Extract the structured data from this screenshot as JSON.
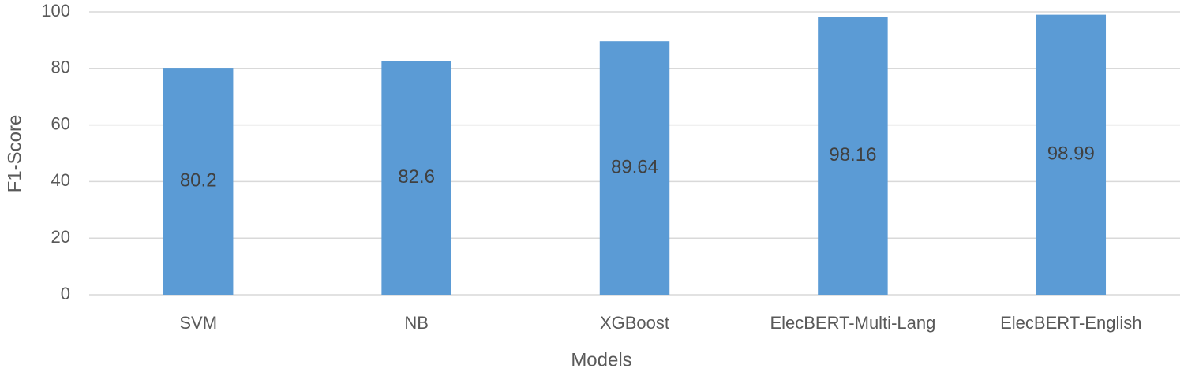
{
  "chart_data": {
    "type": "bar",
    "x_label": "Models",
    "y_label": "F1-Score",
    "categories": [
      "SVM",
      "NB",
      "XGBoost",
      "ElecBERT-Multi-Lang",
      "ElecBERT-English"
    ],
    "values": [
      80.2,
      82.6,
      89.64,
      98.16,
      98.99
    ],
    "color": "#5b9bd5",
    "ylim": [
      0,
      100
    ],
    "yticks": [
      0,
      20,
      40,
      60,
      80,
      100
    ],
    "grid": true
  }
}
